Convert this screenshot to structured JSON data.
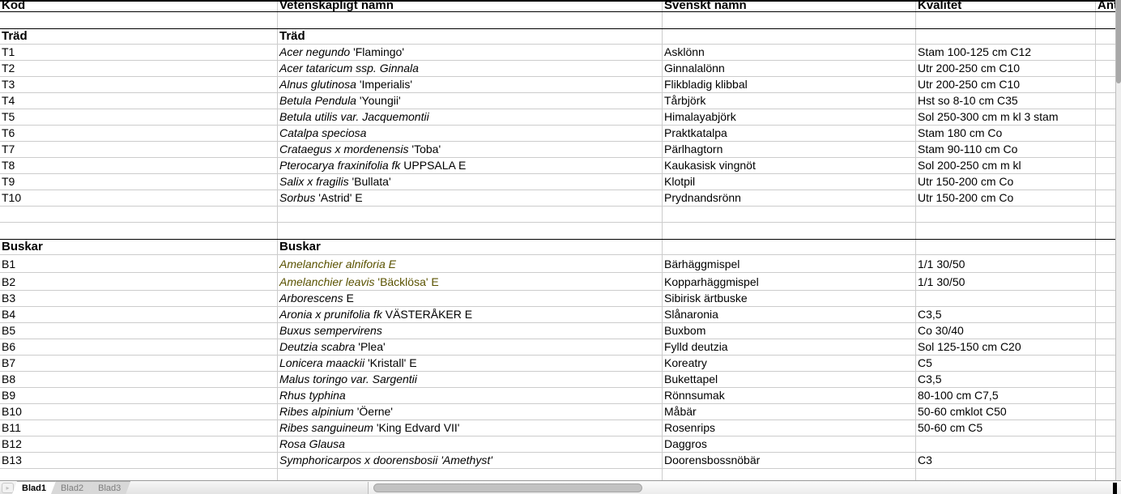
{
  "columns": [
    {
      "label": "Kod"
    },
    {
      "label": "Vetenskapligt namn"
    },
    {
      "label": "Svenskt namn"
    },
    {
      "label": "Kvalitet"
    },
    {
      "label": "Antal"
    }
  ],
  "rows": [
    {
      "t": "empty",
      "nb": true
    },
    {
      "t": "section",
      "kod": "Träd",
      "sci": "Träd"
    },
    {
      "t": "item",
      "kod": "T1",
      "sci_i": "Acer negundo",
      "sci_r": " 'Flamingo'",
      "sv": "Asklönn",
      "kv": "Stam 100-125 cm C12"
    },
    {
      "t": "item",
      "kod": "T2",
      "sci_i": "Acer tataricum ssp. Ginnala",
      "sci_r": "",
      "sv": "Ginnalalönn",
      "kv": "Utr 200-250 cm C10"
    },
    {
      "t": "item",
      "kod": "T3",
      "sci_i": "Alnus glutinosa",
      "sci_r": " 'Imperialis'",
      "sv": "Flikbladig klibbal",
      "kv": "Utr 200-250 cm C10"
    },
    {
      "t": "item",
      "kod": "T4",
      "sci_i": "Betula Pendula",
      "sci_r": " 'Youngii'",
      "sv": "Tårbjörk",
      "kv": "Hst so 8-10 cm C35"
    },
    {
      "t": "item",
      "kod": "T5",
      "sci_i": "Betula utilis var. Jacquemontii",
      "sci_r": "",
      "sv": "Himalayabjörk",
      "kv": "Sol 250-300 cm m kl 3 stam"
    },
    {
      "t": "item",
      "kod": "T6",
      "sci_i": "Catalpa speciosa",
      "sci_r": "",
      "sv": "Praktkatalpa",
      "kv": "Stam 180 cm Co"
    },
    {
      "t": "item",
      "kod": "T7",
      "sci_i": "Crataegus x mordenensis",
      "sci_r": " 'Toba'",
      "sv": "Pärlhagtorn",
      "kv": "Stam 90-110 cm Co"
    },
    {
      "t": "item",
      "kod": "T8",
      "sci_i": "Pterocarya fraxinifolia fk",
      "sci_r": " UPPSALA E",
      "sv": "Kaukasisk vingnöt",
      "kv": "Sol 200-250 cm m kl"
    },
    {
      "t": "item",
      "kod": "T9",
      "sci_i": "Salix x fragilis",
      "sci_r": " 'Bullata'",
      "sv": "Klotpil",
      "kv": "Utr 150-200 cm Co"
    },
    {
      "t": "item",
      "kod": "T10",
      "sci_i": "Sorbus",
      "sci_r": " 'Astrid' E",
      "sv": "Prydnandsrönn",
      "kv": "Utr 150-200 cm Co"
    },
    {
      "t": "empty"
    },
    {
      "t": "empty",
      "nb": true
    },
    {
      "t": "section",
      "kod": "Buskar",
      "sci": "Buskar"
    },
    {
      "t": "item",
      "h": 22,
      "color": "olive",
      "kod": "B1",
      "sci_i": "Amelanchier alniforia E",
      "sci_r": "",
      "sv": "Bärhäggmispel",
      "kv": "1/1 30/50"
    },
    {
      "t": "item",
      "h": 22,
      "color": "olive",
      "kod": "B2",
      "sci_i": "Amelanchier leavis",
      "sci_r": " 'Bäcklösa' E",
      "sv": "Kopparhäggmispel",
      "kv": "1/1 30/50"
    },
    {
      "t": "item",
      "kod": "B3",
      "sci_i": "Arborescens",
      "sci_r": " E",
      "sv": "Sibirisk ärtbuske",
      "kv": ""
    },
    {
      "t": "item",
      "kod": "B4",
      "sci_i": "Aronia x prunifolia fk",
      "sci_r": " VÄSTERÅKER E",
      "sv": "Slånaronia",
      "kv": "C3,5"
    },
    {
      "t": "item",
      "kod": "B5",
      "sci_i": "Buxus sempervirens",
      "sci_r": "",
      "sv": "Buxbom",
      "kv": "Co 30/40"
    },
    {
      "t": "item",
      "kod": "B6",
      "sci_i": "Deutzia scabra",
      "sci_r": " 'Plea'",
      "sv": "Fylld deutzia",
      "kv": "Sol 125-150 cm C20"
    },
    {
      "t": "item",
      "kod": "B7",
      "sci_i": "Lonicera maackii",
      "sci_r": " 'Kristall' E",
      "sv": "Koreatry",
      "kv": "C5"
    },
    {
      "t": "item",
      "kod": "B8",
      "sci_i": "Malus toringo var. Sargentii",
      "sci_r": "",
      "sv": "Bukettapel",
      "kv": "C3,5"
    },
    {
      "t": "item",
      "kod": "B9",
      "sci_i": "Rhus typhina",
      "sci_r": "",
      "sv": "Rönnsumak",
      "kv": "80-100 cm C7,5"
    },
    {
      "t": "item",
      "kod": "B10",
      "sci_i": "Ribes alpinium",
      "sci_r": " 'Öerne'",
      "sv": "Måbär",
      "kv": "50-60 cmklot C50"
    },
    {
      "t": "item",
      "kod": "B11",
      "sci_i": "Ribes sanguineum",
      "sci_r": " 'King Edvard VII'",
      "sv": "Rosenrips",
      "kv": "50-60 cm C5"
    },
    {
      "t": "item",
      "kod": "B12",
      "sci_i": "Rosa Glausa",
      "sci_r": "",
      "sv": "Daggros",
      "kv": ""
    },
    {
      "t": "item",
      "kod": "B13",
      "sci_i": "Symphoricarpos x doorensbosii 'Amethyst'",
      "sci_r": "",
      "sv": "Doorensbossnöbär",
      "kv": "C3"
    },
    {
      "t": "empty",
      "h": 14,
      "nb": true
    }
  ],
  "sheet_tabs": {
    "active": "Blad1",
    "tabs": [
      "Blad1",
      "Blad2",
      "Blad3"
    ]
  },
  "icons": {
    "nav_arrow": "▸"
  },
  "colors": {
    "grid_line": "#cccccc",
    "section_border": "#000000",
    "highlight_row_text": "#5a5200",
    "tab_inactive_text": "#7d7d7d",
    "scrollbar_thumb": "#a8a8a8"
  }
}
